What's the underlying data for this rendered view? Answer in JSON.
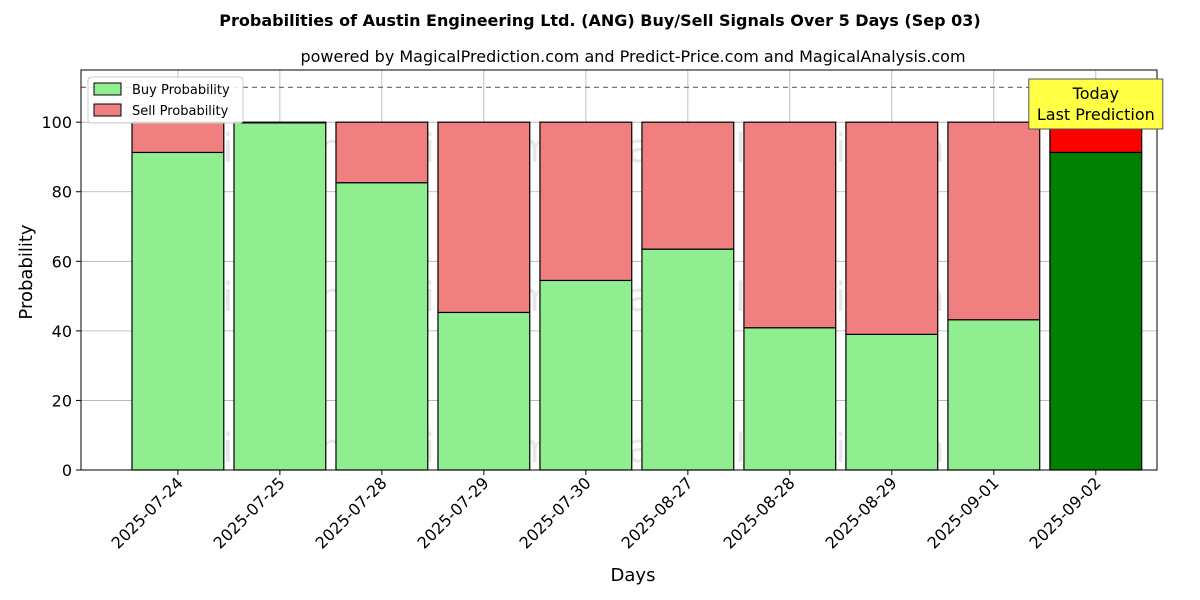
{
  "chart_data": {
    "type": "bar",
    "stacked": true,
    "title": "Probabilities of Austin Engineering Ltd. (ANG) Buy/Sell Signals Over 5 Days (Sep 03)",
    "subtitle": "powered by MagicalPrediction.com and Predict-Price.com and MagicalAnalysis.com",
    "xlabel": "Days",
    "ylabel": "Probability",
    "ylim": [
      0,
      115
    ],
    "yticks": [
      0,
      20,
      40,
      60,
      80,
      100
    ],
    "reference_line": 110,
    "grid": true,
    "legend_position": "top-left",
    "categories": [
      "2025-07-24",
      "2025-07-25",
      "2025-07-28",
      "2025-07-29",
      "2025-07-30",
      "2025-08-27",
      "2025-08-28",
      "2025-08-29",
      "2025-09-01",
      "2025-09-02"
    ],
    "series": [
      {
        "name": "Buy Probability",
        "values": [
          91.3,
          99.8,
          82.6,
          45.3,
          54.5,
          63.5,
          40.9,
          39.0,
          43.2,
          91.3
        ]
      },
      {
        "name": "Sell Probability",
        "values": [
          8.7,
          0.2,
          17.4,
          54.7,
          45.5,
          36.5,
          59.1,
          61.0,
          56.8,
          8.7
        ]
      }
    ],
    "colors": {
      "buy": "#90ee90",
      "sell": "#f08080",
      "buy_highlight": "#008000",
      "sell_highlight": "#ff0000",
      "annotation_bg": "#ffff44"
    },
    "annotation": {
      "lines": [
        "Today",
        "Last Prediction"
      ],
      "category": "2025-09-02"
    },
    "watermarks": [
      "MagicalAnalysis.com",
      "MagicalPrediction.com"
    ]
  }
}
